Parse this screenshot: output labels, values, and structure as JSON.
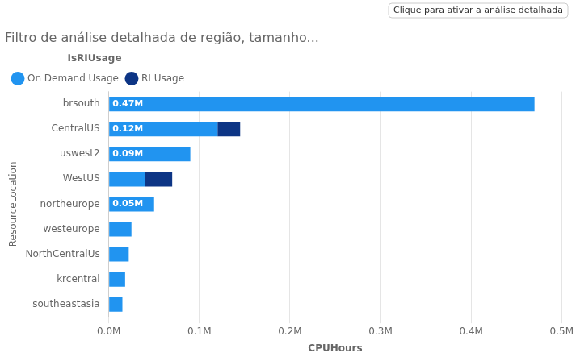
{
  "chart_data": {
    "type": "bar",
    "title": "Filtro de análise detalhada de região, tamanho...",
    "annotations": [
      "Clique para ativar a análise detalhada"
    ],
    "xlabel": "CPUHours",
    "ylabel": "ResourceLocation",
    "orientation": "horizontal",
    "stacked": true,
    "grid": true,
    "legend": "top",
    "legend_title": "IsRIUsage",
    "categories": [
      "brsouth",
      "CentralUS",
      "uswest2",
      "WestUS",
      "northeurope",
      "westeurope",
      "NorthCentralUs",
      "krcentral",
      "southeastasia"
    ],
    "series": [
      {
        "name": "On Demand Usage",
        "color": "#2194F0",
        "values": [
          0.47,
          0.12,
          0.09,
          0.04,
          0.05,
          0.025,
          0.022,
          0.018,
          0.015
        ],
        "value_labels": [
          "0.47M",
          "0.12M",
          "0.09M",
          null,
          "0.05M",
          null,
          null,
          null,
          null
        ]
      },
      {
        "name": "RI Usage",
        "color": "#0D3585",
        "values": [
          0.0,
          0.025,
          0.0,
          0.03,
          0.0,
          0.0,
          0.0,
          0.0,
          0.0
        ]
      }
    ],
    "xlim": [
      0,
      0.5
    ],
    "xticks": [
      {
        "value": 0.0,
        "label": "0.0M"
      },
      {
        "value": 0.1,
        "label": "0.1M"
      },
      {
        "value": 0.2,
        "label": "0.2M"
      },
      {
        "value": 0.3,
        "label": "0.3M"
      },
      {
        "value": 0.4,
        "label": "0.4M"
      },
      {
        "value": 0.5,
        "label": "0.5M"
      }
    ]
  }
}
